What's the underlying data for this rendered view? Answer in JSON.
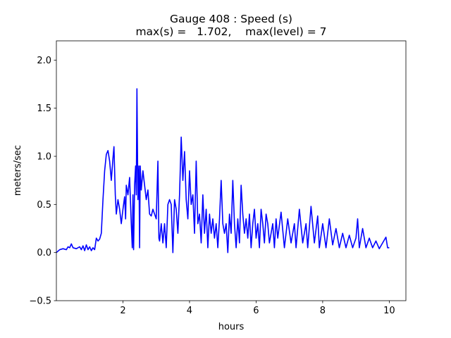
{
  "chart_data": {
    "type": "line",
    "title": "Gauge 408 : Speed (s)",
    "subtitle": "max(s) =   1.702,    max(level) = 7",
    "xlabel": "hours",
    "ylabel": "meters/sec",
    "xlim": [
      0,
      10.5
    ],
    "ylim": [
      -0.5,
      2.2
    ],
    "xticks": [
      2,
      4,
      6,
      8,
      10
    ],
    "yticks": [
      {
        "value": -0.5,
        "label": "−0.5"
      },
      {
        "value": 0,
        "label": "0.0"
      },
      {
        "value": 0.5,
        "label": "0.5"
      },
      {
        "value": 1,
        "label": "1.0"
      },
      {
        "value": 1.5,
        "label": "1.5"
      },
      {
        "value": 2,
        "label": "2.0"
      }
    ],
    "series": [
      {
        "color": "#0000ff",
        "x": [
          0.0,
          0.1,
          0.2,
          0.3,
          0.35,
          0.4,
          0.45,
          0.5,
          0.6,
          0.7,
          0.75,
          0.8,
          0.85,
          0.9,
          0.95,
          1.0,
          1.05,
          1.1,
          1.15,
          1.2,
          1.25,
          1.3,
          1.35,
          1.4,
          1.45,
          1.5,
          1.55,
          1.6,
          1.65,
          1.7,
          1.73,
          1.77,
          1.8,
          1.85,
          1.9,
          1.95,
          2.0,
          2.05,
          2.08,
          2.1,
          2.15,
          2.2,
          2.25,
          2.28,
          2.3,
          2.32,
          2.35,
          2.38,
          2.4,
          2.42,
          2.45,
          2.48,
          2.5,
          2.52,
          2.55,
          2.6,
          2.65,
          2.7,
          2.75,
          2.8,
          2.85,
          2.9,
          2.95,
          3.0,
          3.05,
          3.08,
          3.1,
          3.15,
          3.2,
          3.25,
          3.3,
          3.35,
          3.4,
          3.45,
          3.5,
          3.55,
          3.6,
          3.65,
          3.7,
          3.75,
          3.8,
          3.85,
          3.9,
          3.95,
          4.0,
          4.05,
          4.1,
          4.15,
          4.2,
          4.25,
          4.3,
          4.35,
          4.4,
          4.45,
          4.5,
          4.55,
          4.6,
          4.65,
          4.7,
          4.75,
          4.8,
          4.85,
          4.9,
          4.95,
          5.0,
          5.05,
          5.1,
          5.15,
          5.2,
          5.25,
          5.3,
          5.35,
          5.4,
          5.45,
          5.5,
          5.55,
          5.6,
          5.65,
          5.7,
          5.75,
          5.8,
          5.85,
          5.9,
          5.95,
          6.0,
          6.05,
          6.1,
          6.15,
          6.2,
          6.25,
          6.3,
          6.35,
          6.4,
          6.5,
          6.55,
          6.6,
          6.65,
          6.75,
          6.85,
          6.95,
          7.05,
          7.15,
          7.2,
          7.3,
          7.4,
          7.5,
          7.55,
          7.65,
          7.75,
          7.85,
          7.9,
          8.0,
          8.1,
          8.2,
          8.3,
          8.4,
          8.5,
          8.6,
          8.7,
          8.8,
          8.9,
          9.0,
          9.05,
          9.1,
          9.2,
          9.3,
          9.4,
          9.5,
          9.6,
          9.7,
          9.8,
          9.9,
          9.95,
          10.0
        ],
        "values": [
          0.0,
          0.03,
          0.04,
          0.03,
          0.06,
          0.05,
          0.09,
          0.05,
          0.04,
          0.06,
          0.03,
          0.07,
          0.02,
          0.08,
          0.03,
          0.06,
          0.02,
          0.05,
          0.03,
          0.15,
          0.12,
          0.14,
          0.2,
          0.55,
          0.85,
          1.02,
          1.06,
          0.95,
          0.75,
          0.98,
          1.1,
          0.6,
          0.4,
          0.55,
          0.45,
          0.3,
          0.45,
          0.58,
          0.35,
          0.7,
          0.6,
          0.78,
          0.3,
          0.05,
          0.6,
          0.03,
          0.7,
          0.9,
          0.6,
          1.702,
          0.55,
          0.9,
          0.05,
          0.9,
          0.65,
          0.85,
          0.7,
          0.55,
          0.65,
          0.4,
          0.38,
          0.45,
          0.4,
          0.35,
          0.95,
          0.15,
          0.12,
          0.3,
          0.1,
          0.3,
          0.05,
          0.5,
          0.55,
          0.5,
          0.0,
          0.55,
          0.45,
          0.2,
          0.6,
          1.2,
          0.75,
          1.05,
          0.55,
          0.35,
          0.85,
          0.5,
          0.6,
          0.2,
          0.95,
          0.3,
          0.4,
          0.1,
          0.6,
          0.2,
          0.45,
          0.05,
          0.4,
          0.2,
          0.35,
          0.15,
          0.3,
          0.05,
          0.35,
          0.75,
          0.3,
          0.2,
          0.3,
          0.0,
          0.4,
          0.2,
          0.75,
          0.3,
          0.05,
          0.35,
          0.1,
          0.7,
          0.4,
          0.2,
          0.35,
          0.15,
          0.4,
          0.05,
          0.3,
          0.45,
          0.15,
          0.3,
          0.05,
          0.45,
          0.3,
          0.1,
          0.4,
          0.3,
          0.1,
          0.3,
          0.05,
          0.35,
          0.15,
          0.42,
          0.05,
          0.35,
          0.1,
          0.3,
          0.05,
          0.45,
          0.1,
          0.3,
          0.05,
          0.48,
          0.1,
          0.38,
          0.05,
          0.3,
          0.05,
          0.35,
          0.08,
          0.25,
          0.05,
          0.2,
          0.05,
          0.18,
          0.05,
          0.15,
          0.35,
          0.05,
          0.25,
          0.05,
          0.15,
          0.05,
          0.12,
          0.04,
          0.1,
          0.16,
          0.05,
          0.05
        ]
      }
    ]
  }
}
